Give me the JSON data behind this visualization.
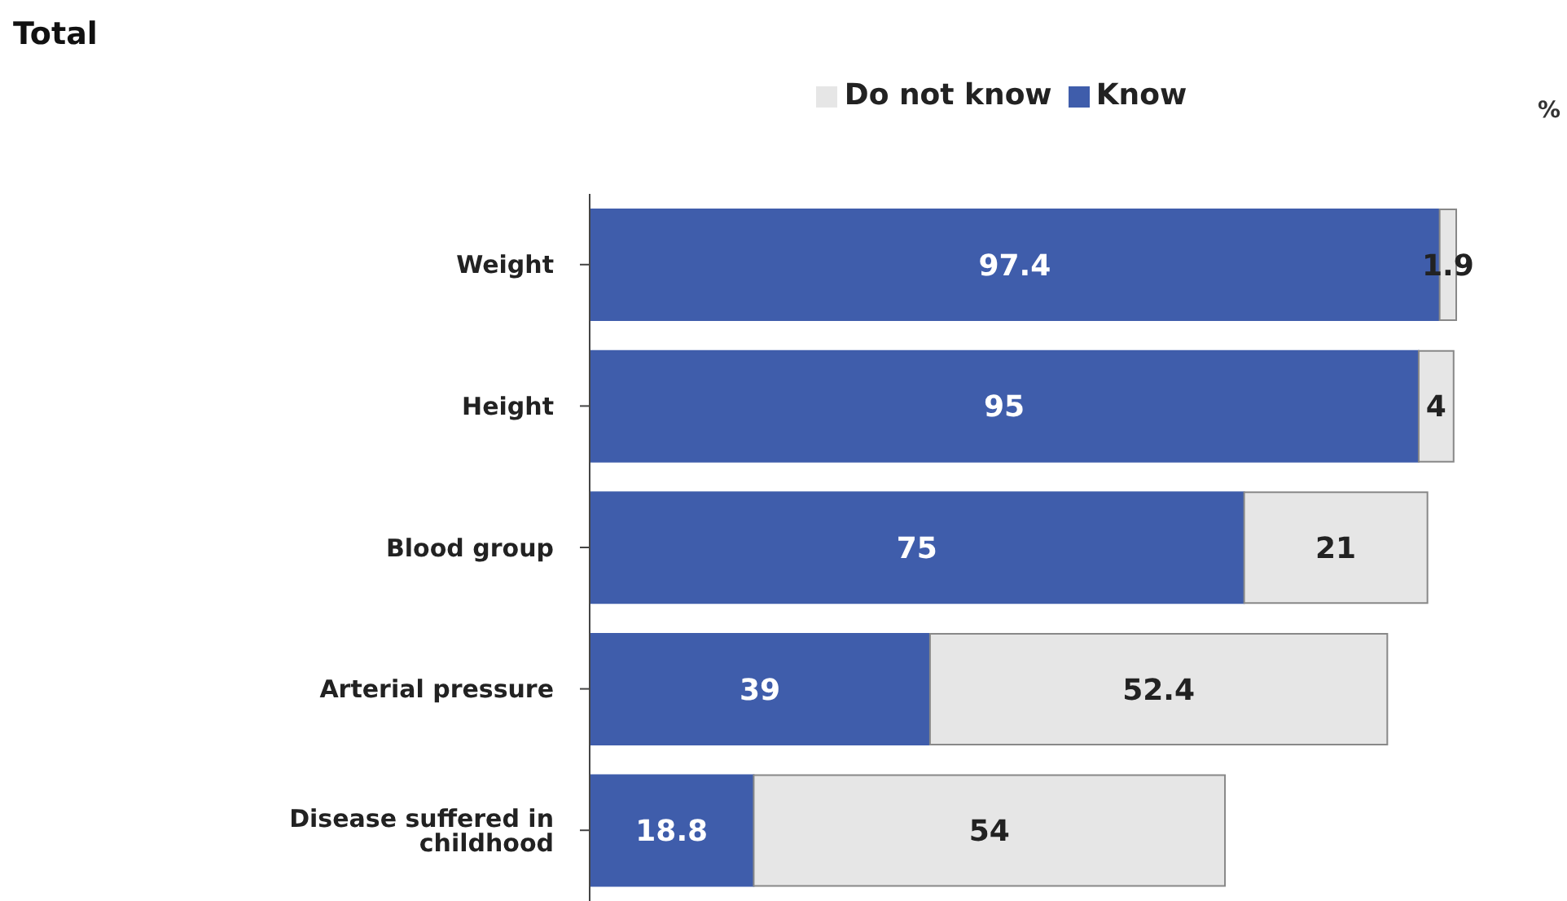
{
  "chart_data": {
    "type": "bar",
    "title": "Total",
    "orientation": "horizontal",
    "stacked": true,
    "data_labels": true,
    "legend": "top",
    "categories": [
      "Weight",
      "Height",
      "Blood group",
      "Arterial pressure",
      "Disease suffered in childhood"
    ],
    "series": [
      {
        "name": "Know",
        "color": "#3f5dab",
        "values": [
          97.4,
          95,
          75,
          39,
          18.8
        ]
      },
      {
        "name": "Do not know",
        "color": "#e6e6e6",
        "values": [
          1.9,
          4,
          21,
          52.4,
          54
        ]
      }
    ],
    "annotations": [
      "%"
    ]
  }
}
